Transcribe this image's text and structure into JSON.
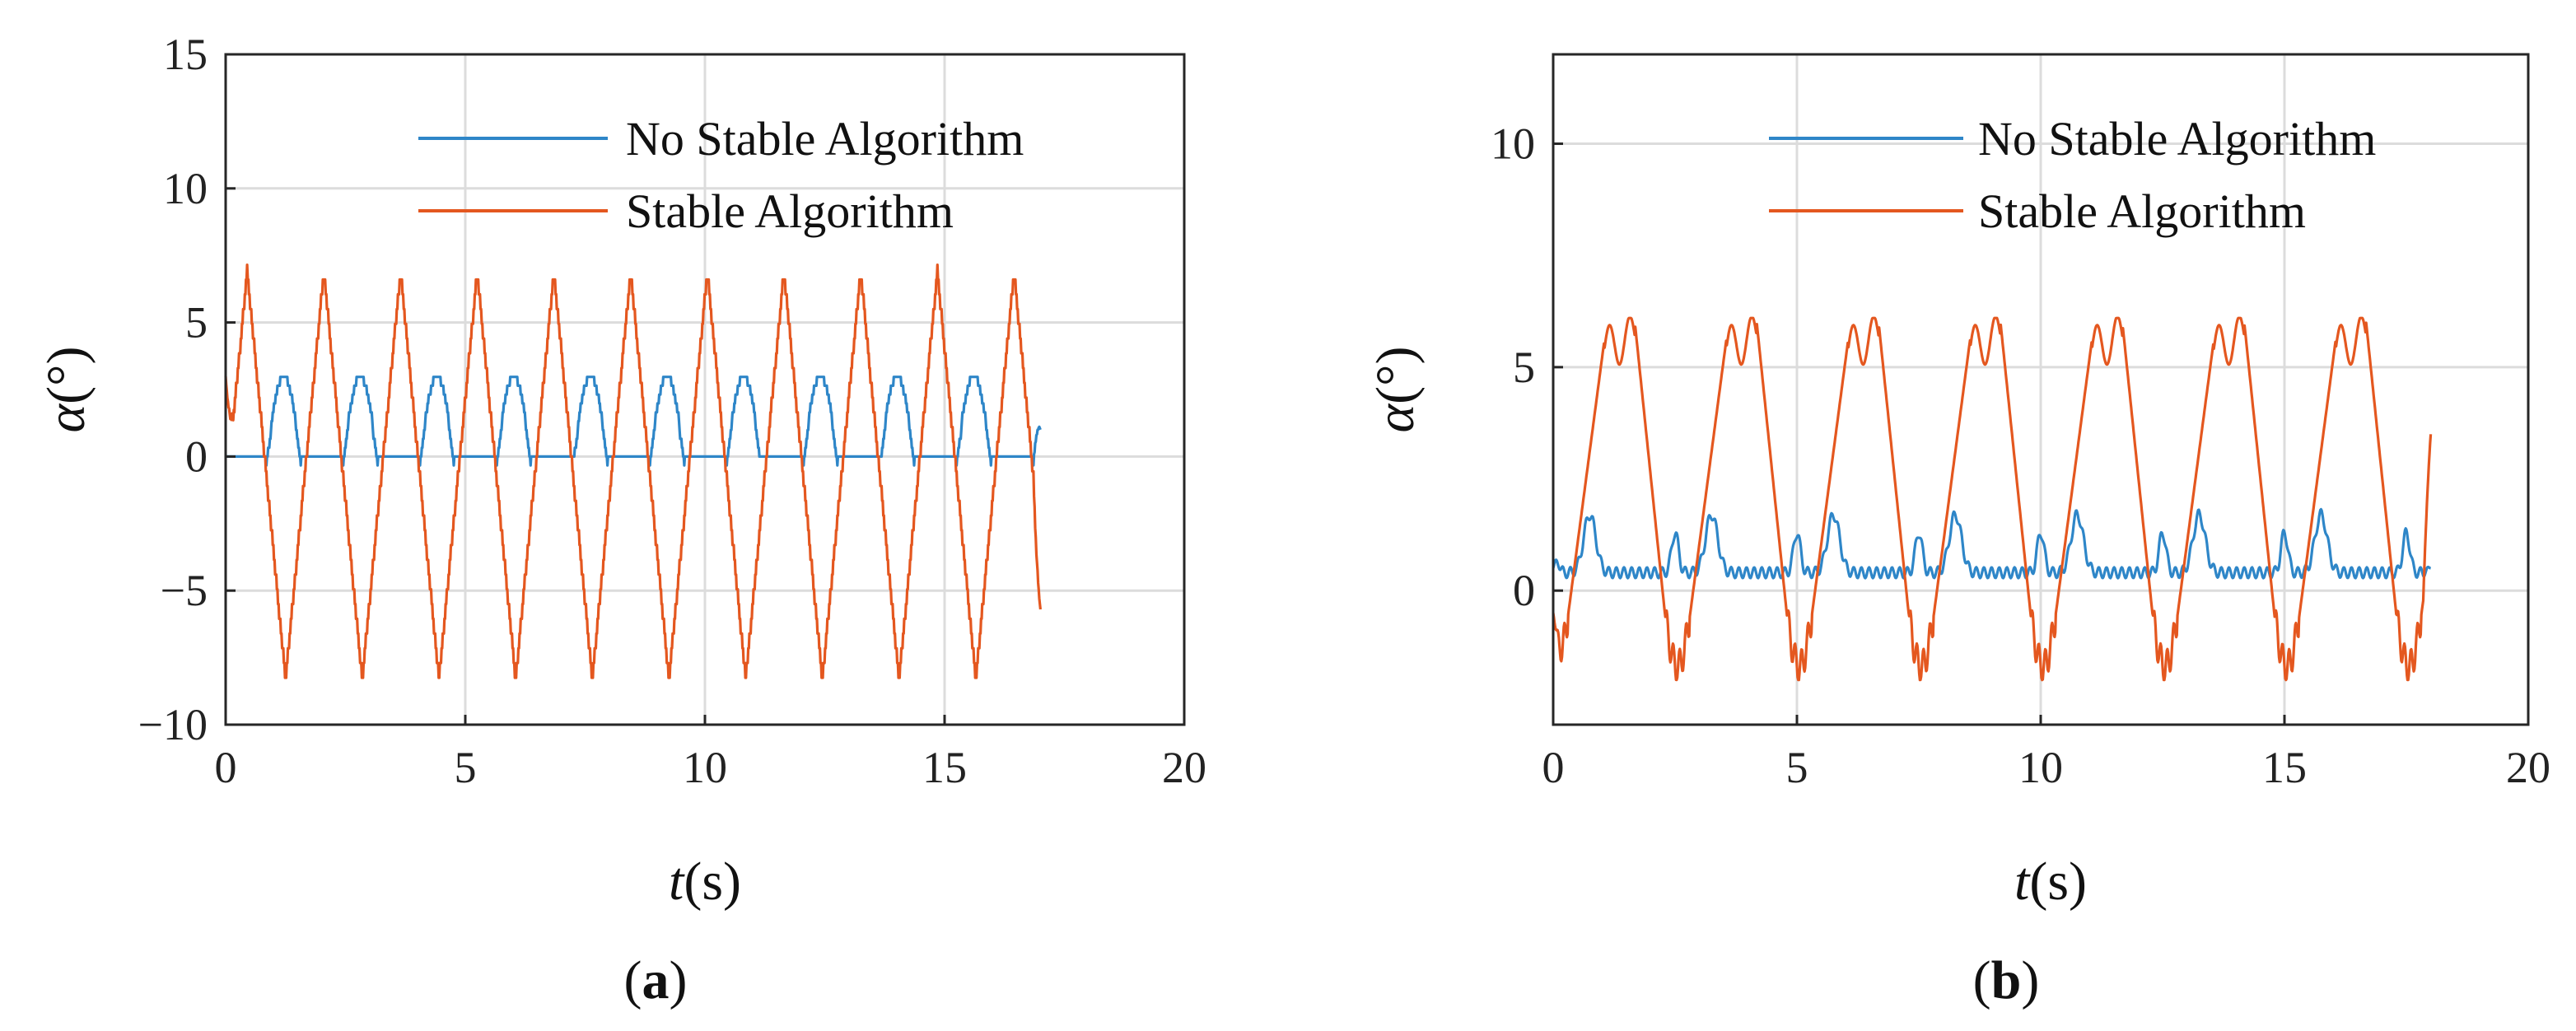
{
  "colors": {
    "series_blue": "#2E86C8",
    "series_orange": "#E4571F"
  },
  "chart_data": [
    {
      "type": "line",
      "panel_label": "a",
      "xlabel_var": "t",
      "xlabel_unit": "(s)",
      "ylabel_var": "α",
      "ylabel_unit": "(°)",
      "xlim": [
        0,
        20
      ],
      "ylim": [
        -10,
        15
      ],
      "xticks": [
        0,
        5,
        10,
        15,
        20
      ],
      "yticks": [
        -10,
        -5,
        0,
        5,
        10,
        15
      ],
      "ytick_labels": [
        "−10",
        "−5",
        "0",
        "5",
        "10",
        "15"
      ],
      "grid": true,
      "legend_position": "top-right",
      "series": [
        {
          "name": "No Stable Algorithm",
          "color": "#2E86C8",
          "x_end": 17.0,
          "period": 1.6,
          "min": -0.3,
          "max": 3.0,
          "shape": "stepped-pulse",
          "end_value": 1.0
        },
        {
          "name": "Stable Algorithm",
          "color": "#E4571F",
          "x_end": 17.0,
          "period": 1.6,
          "min": -8.3,
          "max": 6.9,
          "shape": "stepped-triangle",
          "start_value": 3.0,
          "end_value": -5.7
        }
      ]
    },
    {
      "type": "line",
      "panel_label": "b",
      "xlabel_var": "t",
      "xlabel_unit": "(s)",
      "ylabel_var": "α",
      "ylabel_unit": "(°)",
      "xlim": [
        0,
        20
      ],
      "ylim": [
        -3,
        12
      ],
      "xticks": [
        0,
        5,
        10,
        15,
        20
      ],
      "yticks": [
        0,
        5,
        10
      ],
      "ytick_labels": [
        "0",
        "5",
        "10"
      ],
      "grid": true,
      "legend_position": "top-right",
      "series": [
        {
          "name": "No Stable Algorithm",
          "color": "#2E86C8",
          "x_end": 18.0,
          "period": 2.5,
          "min": 0.1,
          "max": 2.0,
          "shape": "double-bump",
          "start_value": 0.5,
          "end_value": 0.5
        },
        {
          "name": "Stable Algorithm",
          "color": "#E4571F",
          "x_end": 18.0,
          "period": 2.5,
          "min": -2.0,
          "max": 6.1,
          "shape": "trapezoid",
          "start_value": -0.5,
          "end_value": 3.5
        }
      ]
    }
  ]
}
